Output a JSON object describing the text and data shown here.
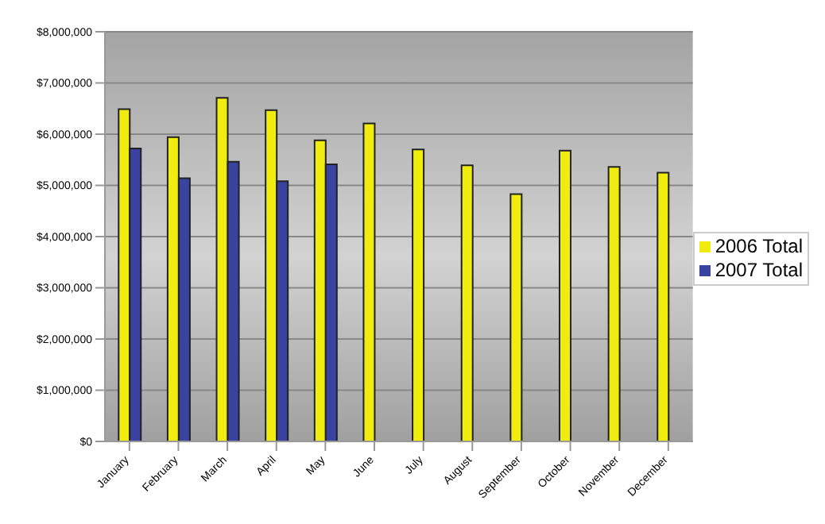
{
  "chart_data": {
    "type": "bar",
    "categories": [
      "January",
      "February",
      "March",
      "April",
      "May",
      "June",
      "July",
      "August",
      "September",
      "October",
      "November",
      "December"
    ],
    "series": [
      {
        "name": "2006 Total",
        "color": "#f0ec10",
        "values": [
          6490000,
          5940000,
          6710000,
          6470000,
          5880000,
          6210000,
          5700000,
          5390000,
          4830000,
          5680000,
          5360000,
          5250000
        ]
      },
      {
        "name": "2007 Total",
        "color": "#3a44a0",
        "values": [
          5720000,
          5140000,
          5460000,
          5080000,
          5410000,
          null,
          null,
          null,
          null,
          null,
          null,
          null
        ]
      }
    ],
    "ylim": [
      0,
      8000000
    ],
    "yticks": [
      {
        "value": 0,
        "label": "$0"
      },
      {
        "value": 1000000,
        "label": "$1,000,000"
      },
      {
        "value": 2000000,
        "label": "$2,000,000"
      },
      {
        "value": 3000000,
        "label": "$3,000,000"
      },
      {
        "value": 4000000,
        "label": "$4,000,000"
      },
      {
        "value": 5000000,
        "label": "$5,000,000"
      },
      {
        "value": 6000000,
        "label": "$6,000,000"
      },
      {
        "value": 7000000,
        "label": "$7,000,000"
      },
      {
        "value": 8000000,
        "label": "$8,000,000"
      }
    ],
    "grid": "y",
    "legend": "right"
  }
}
